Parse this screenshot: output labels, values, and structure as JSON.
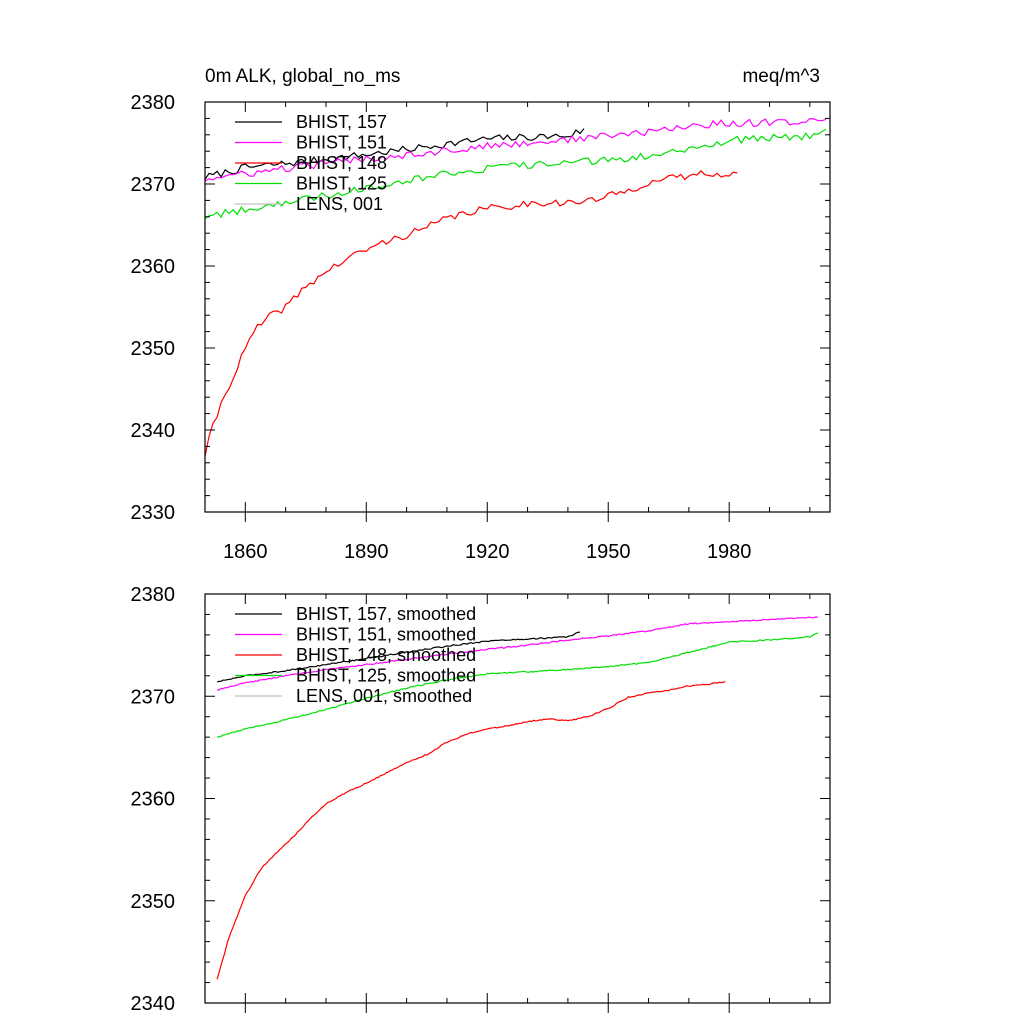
{
  "chart_data": [
    {
      "type": "line",
      "title": "0m ALK, global_no_ms",
      "units": "meq/m^3",
      "xlim": [
        1850,
        2005
      ],
      "ylim": [
        2330,
        2380
      ],
      "x_ticks": [
        1860,
        1890,
        1920,
        1950,
        1980
      ],
      "x_tick_labels": [
        "1860",
        "1890",
        "1920",
        "1950",
        "1980"
      ],
      "y_ticks": [
        2330,
        2340,
        2350,
        2360,
        2370,
        2380
      ],
      "y_tick_labels": [
        "2330",
        "2340",
        "2350",
        "2360",
        "2370",
        "2380"
      ],
      "legend_position": "top-left",
      "series": [
        {
          "name": "BHIST, 157",
          "color": "#000000",
          "noise": true,
          "x": [
            1850,
            1860,
            1870,
            1880,
            1890,
            1900,
            1910,
            1920,
            1930,
            1940,
            1944
          ],
          "y": [
            2370.8,
            2372.0,
            2372.5,
            2373.0,
            2373.6,
            2374.2,
            2374.9,
            2375.5,
            2375.7,
            2375.9,
            2376.6
          ]
        },
        {
          "name": "BHIST, 151",
          "color": "#ff00ff",
          "noise": true,
          "x": [
            1850,
            1860,
            1870,
            1880,
            1890,
            1900,
            1910,
            1920,
            1930,
            1940,
            1950,
            1960,
            1970,
            1980,
            1990,
            2000,
            2004
          ],
          "y": [
            2370.6,
            2371.2,
            2371.9,
            2372.5,
            2373.1,
            2373.6,
            2374.1,
            2374.6,
            2375.0,
            2375.4,
            2375.9,
            2376.3,
            2377.1,
            2377.4,
            2377.5,
            2377.7,
            2378.0
          ]
        },
        {
          "name": "BHIST, 148",
          "color": "#ff0000",
          "noise": true,
          "x": [
            1850,
            1852,
            1855,
            1858,
            1860,
            1863,
            1866,
            1870,
            1875,
            1880,
            1885,
            1890,
            1895,
            1900,
            1905,
            1910,
            1915,
            1920,
            1925,
            1930,
            1935,
            1940,
            1945,
            1950,
            1955,
            1960,
            1965,
            1970,
            1975,
            1980,
            1982
          ],
          "y": [
            2337.0,
            2340.5,
            2344.5,
            2347.5,
            2350.0,
            2352.5,
            2353.8,
            2355.0,
            2357.5,
            2359.3,
            2360.8,
            2362.0,
            2363.0,
            2363.8,
            2364.7,
            2365.8,
            2366.5,
            2367.0,
            2367.3,
            2367.6,
            2367.8,
            2367.7,
            2367.9,
            2368.5,
            2369.2,
            2370.2,
            2370.6,
            2371.0,
            2371.4,
            2371.2,
            2371.3
          ]
        },
        {
          "name": "BHIST, 125",
          "color": "#00e000",
          "noise": true,
          "x": [
            1850,
            1860,
            1870,
            1880,
            1890,
            1900,
            1910,
            1920,
            1930,
            1940,
            1950,
            1960,
            1970,
            1980,
            1990,
            2000,
            2004
          ],
          "y": [
            2366.0,
            2366.9,
            2367.8,
            2368.6,
            2369.6,
            2370.5,
            2371.3,
            2371.9,
            2372.3,
            2372.6,
            2372.9,
            2373.4,
            2374.4,
            2375.3,
            2375.6,
            2375.9,
            2376.6
          ]
        },
        {
          "name": "LENS, 001",
          "color": "#c0c0c0",
          "noise": false,
          "x": [],
          "y": []
        }
      ]
    },
    {
      "type": "line",
      "xlim": [
        1850,
        2005
      ],
      "ylim": [
        2340,
        2380
      ],
      "x_ticks": [
        1860,
        1890,
        1920,
        1950,
        1980
      ],
      "y_ticks": [
        2340,
        2350,
        2360,
        2370,
        2380
      ],
      "y_tick_labels": [
        "2340",
        "2350",
        "2360",
        "2370",
        "2380"
      ],
      "legend_position": "top-left",
      "series": [
        {
          "name": "BHIST, 157, smoothed",
          "color": "#000000",
          "noise": false,
          "x": [
            1853,
            1860,
            1870,
            1880,
            1890,
            1900,
            1910,
            1920,
            1930,
            1940,
            1943
          ],
          "y": [
            2371.4,
            2372.0,
            2372.5,
            2373.1,
            2373.7,
            2374.3,
            2374.9,
            2375.4,
            2375.6,
            2375.8,
            2376.3
          ]
        },
        {
          "name": "BHIST, 151, smoothed",
          "color": "#ff00ff",
          "noise": false,
          "x": [
            1853,
            1860,
            1870,
            1880,
            1890,
            1900,
            1910,
            1920,
            1930,
            1940,
            1950,
            1960,
            1970,
            1980,
            1990,
            2000,
            2002
          ],
          "y": [
            2370.6,
            2371.3,
            2372.0,
            2372.6,
            2373.1,
            2373.6,
            2374.1,
            2374.6,
            2375.0,
            2375.5,
            2375.9,
            2376.4,
            2377.1,
            2377.3,
            2377.5,
            2377.7,
            2377.7
          ]
        },
        {
          "name": "BHIST, 148, smoothed",
          "color": "#ff0000",
          "noise": false,
          "x": [
            1853,
            1856,
            1860,
            1864,
            1868,
            1872,
            1876,
            1880,
            1885,
            1890,
            1895,
            1900,
            1905,
            1910,
            1915,
            1920,
            1925,
            1930,
            1935,
            1940,
            1945,
            1950,
            1955,
            1960,
            1965,
            1970,
            1975,
            1979
          ],
          "y": [
            2342.3,
            2346.5,
            2350.5,
            2353.2,
            2354.8,
            2356.3,
            2358.0,
            2359.5,
            2360.6,
            2361.5,
            2362.5,
            2363.5,
            2364.3,
            2365.5,
            2366.3,
            2366.8,
            2367.1,
            2367.5,
            2367.8,
            2367.6,
            2368.0,
            2368.8,
            2369.9,
            2370.3,
            2370.6,
            2371.0,
            2371.2,
            2371.4
          ]
        },
        {
          "name": "BHIST, 125, smoothed",
          "color": "#00e000",
          "noise": false,
          "x": [
            1853,
            1860,
            1870,
            1880,
            1890,
            1900,
            1910,
            1920,
            1930,
            1940,
            1950,
            1960,
            1970,
            1980,
            1990,
            2000,
            2002
          ],
          "y": [
            2366.0,
            2366.8,
            2367.7,
            2368.7,
            2369.8,
            2370.8,
            2371.6,
            2372.2,
            2372.4,
            2372.6,
            2372.9,
            2373.3,
            2374.3,
            2375.3,
            2375.5,
            2375.8,
            2376.2
          ]
        },
        {
          "name": "LENS, 001, smoothed",
          "color": "#c0c0c0",
          "noise": false,
          "x": [],
          "y": []
        }
      ]
    }
  ]
}
